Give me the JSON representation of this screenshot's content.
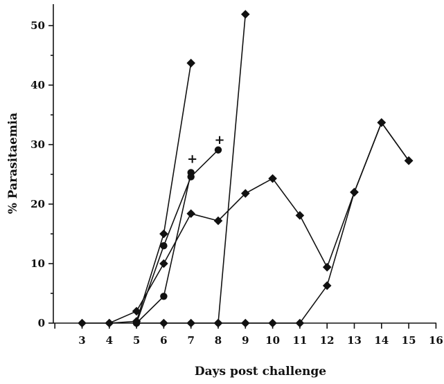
{
  "chart_data": {
    "type": "line",
    "title": "",
    "xlabel": "Days post challenge",
    "ylabel": "% Parasitaemia",
    "xlim": [
      2,
      16
    ],
    "ylim": [
      0,
      54
    ],
    "x_ticks": [
      3,
      4,
      5,
      6,
      7,
      8,
      9,
      10,
      11,
      12,
      13,
      14,
      15,
      16
    ],
    "y_ticks": [
      0,
      10,
      20,
      30,
      40,
      50
    ],
    "grid": false,
    "legend": "none",
    "series": [
      {
        "marker": "diamond",
        "points": [
          [
            3,
            0
          ],
          [
            4,
            0
          ],
          [
            5,
            0.3
          ],
          [
            6,
            15
          ],
          [
            7,
            43.7
          ]
        ]
      },
      {
        "marker": "circle",
        "points": [
          [
            5,
            0
          ],
          [
            6,
            13
          ],
          [
            7,
            24.6
          ],
          [
            8,
            29.1
          ]
        ]
      },
      {
        "marker": "circle",
        "points": [
          [
            5,
            0
          ],
          [
            6,
            4.5
          ],
          [
            7,
            25.3
          ]
        ]
      },
      {
        "marker": "diamond",
        "points": [
          [
            4,
            0
          ],
          [
            5,
            2
          ],
          [
            6,
            10
          ],
          [
            7,
            18.4
          ],
          [
            8,
            17.2
          ],
          [
            9,
            21.8
          ],
          [
            10,
            24.3
          ],
          [
            11,
            18.1
          ],
          [
            12,
            9.4
          ],
          [
            13,
            22
          ],
          [
            14,
            33.7
          ],
          [
            15,
            27.3
          ]
        ]
      },
      {
        "marker": "diamond",
        "points": [
          [
            5,
            0
          ],
          [
            6,
            0
          ],
          [
            7,
            0
          ],
          [
            8,
            0
          ],
          [
            9,
            51.9
          ]
        ]
      },
      {
        "marker": "diamond",
        "points": [
          [
            8,
            0
          ],
          [
            9,
            0
          ],
          [
            10,
            0
          ],
          [
            11,
            0
          ],
          [
            12,
            6.3
          ],
          [
            13,
            22
          ],
          [
            14,
            33.7
          ],
          [
            15,
            27.3
          ]
        ]
      }
    ],
    "annotations": [
      {
        "text": "+",
        "x": 7,
        "y": 27.6
      },
      {
        "text": "+",
        "x": 8,
        "y": 30.8
      }
    ]
  }
}
